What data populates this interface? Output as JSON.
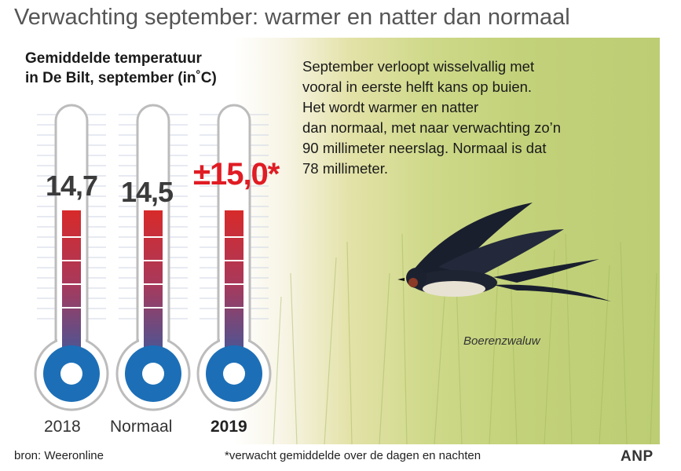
{
  "title": "Verwachting september: warmer en natter dan normaal",
  "description": [
    "September verloopt wisselvallig met",
    "vooral in eerste helft kans op buien.",
    "Het wordt warmer en natter",
    "dan normaal, met naar verwachting zo’n",
    "90 millimeter neerslag. Normaal is dat",
    "78 millimeter."
  ],
  "bird_caption": "Boerenzwaluw",
  "source": "bron:  Weeronline",
  "footnote": "*verwacht gemiddelde over de dagen en nachten",
  "logo": "ANP",
  "chart_data": {
    "type": "bar",
    "title_line1": "Gemiddelde temperatuur",
    "title_line2": "in De Bilt, september (in˚C)",
    "categories": [
      "2018",
      "Normaal",
      "2019"
    ],
    "values": [
      14.7,
      14.5,
      15.0
    ],
    "value_labels": [
      "14,7",
      "14,5",
      "±15,0*"
    ],
    "highlight_index": 2,
    "colors": {
      "highlight": "#e01c24",
      "label": "#3b3b3b",
      "fill_top": "#d72a2a",
      "fill_bottom": "#2f5ea6",
      "bulb": "#1c6fb7",
      "tube_outline": "#bcbcbc",
      "tick": "#cfd6e4"
    }
  }
}
